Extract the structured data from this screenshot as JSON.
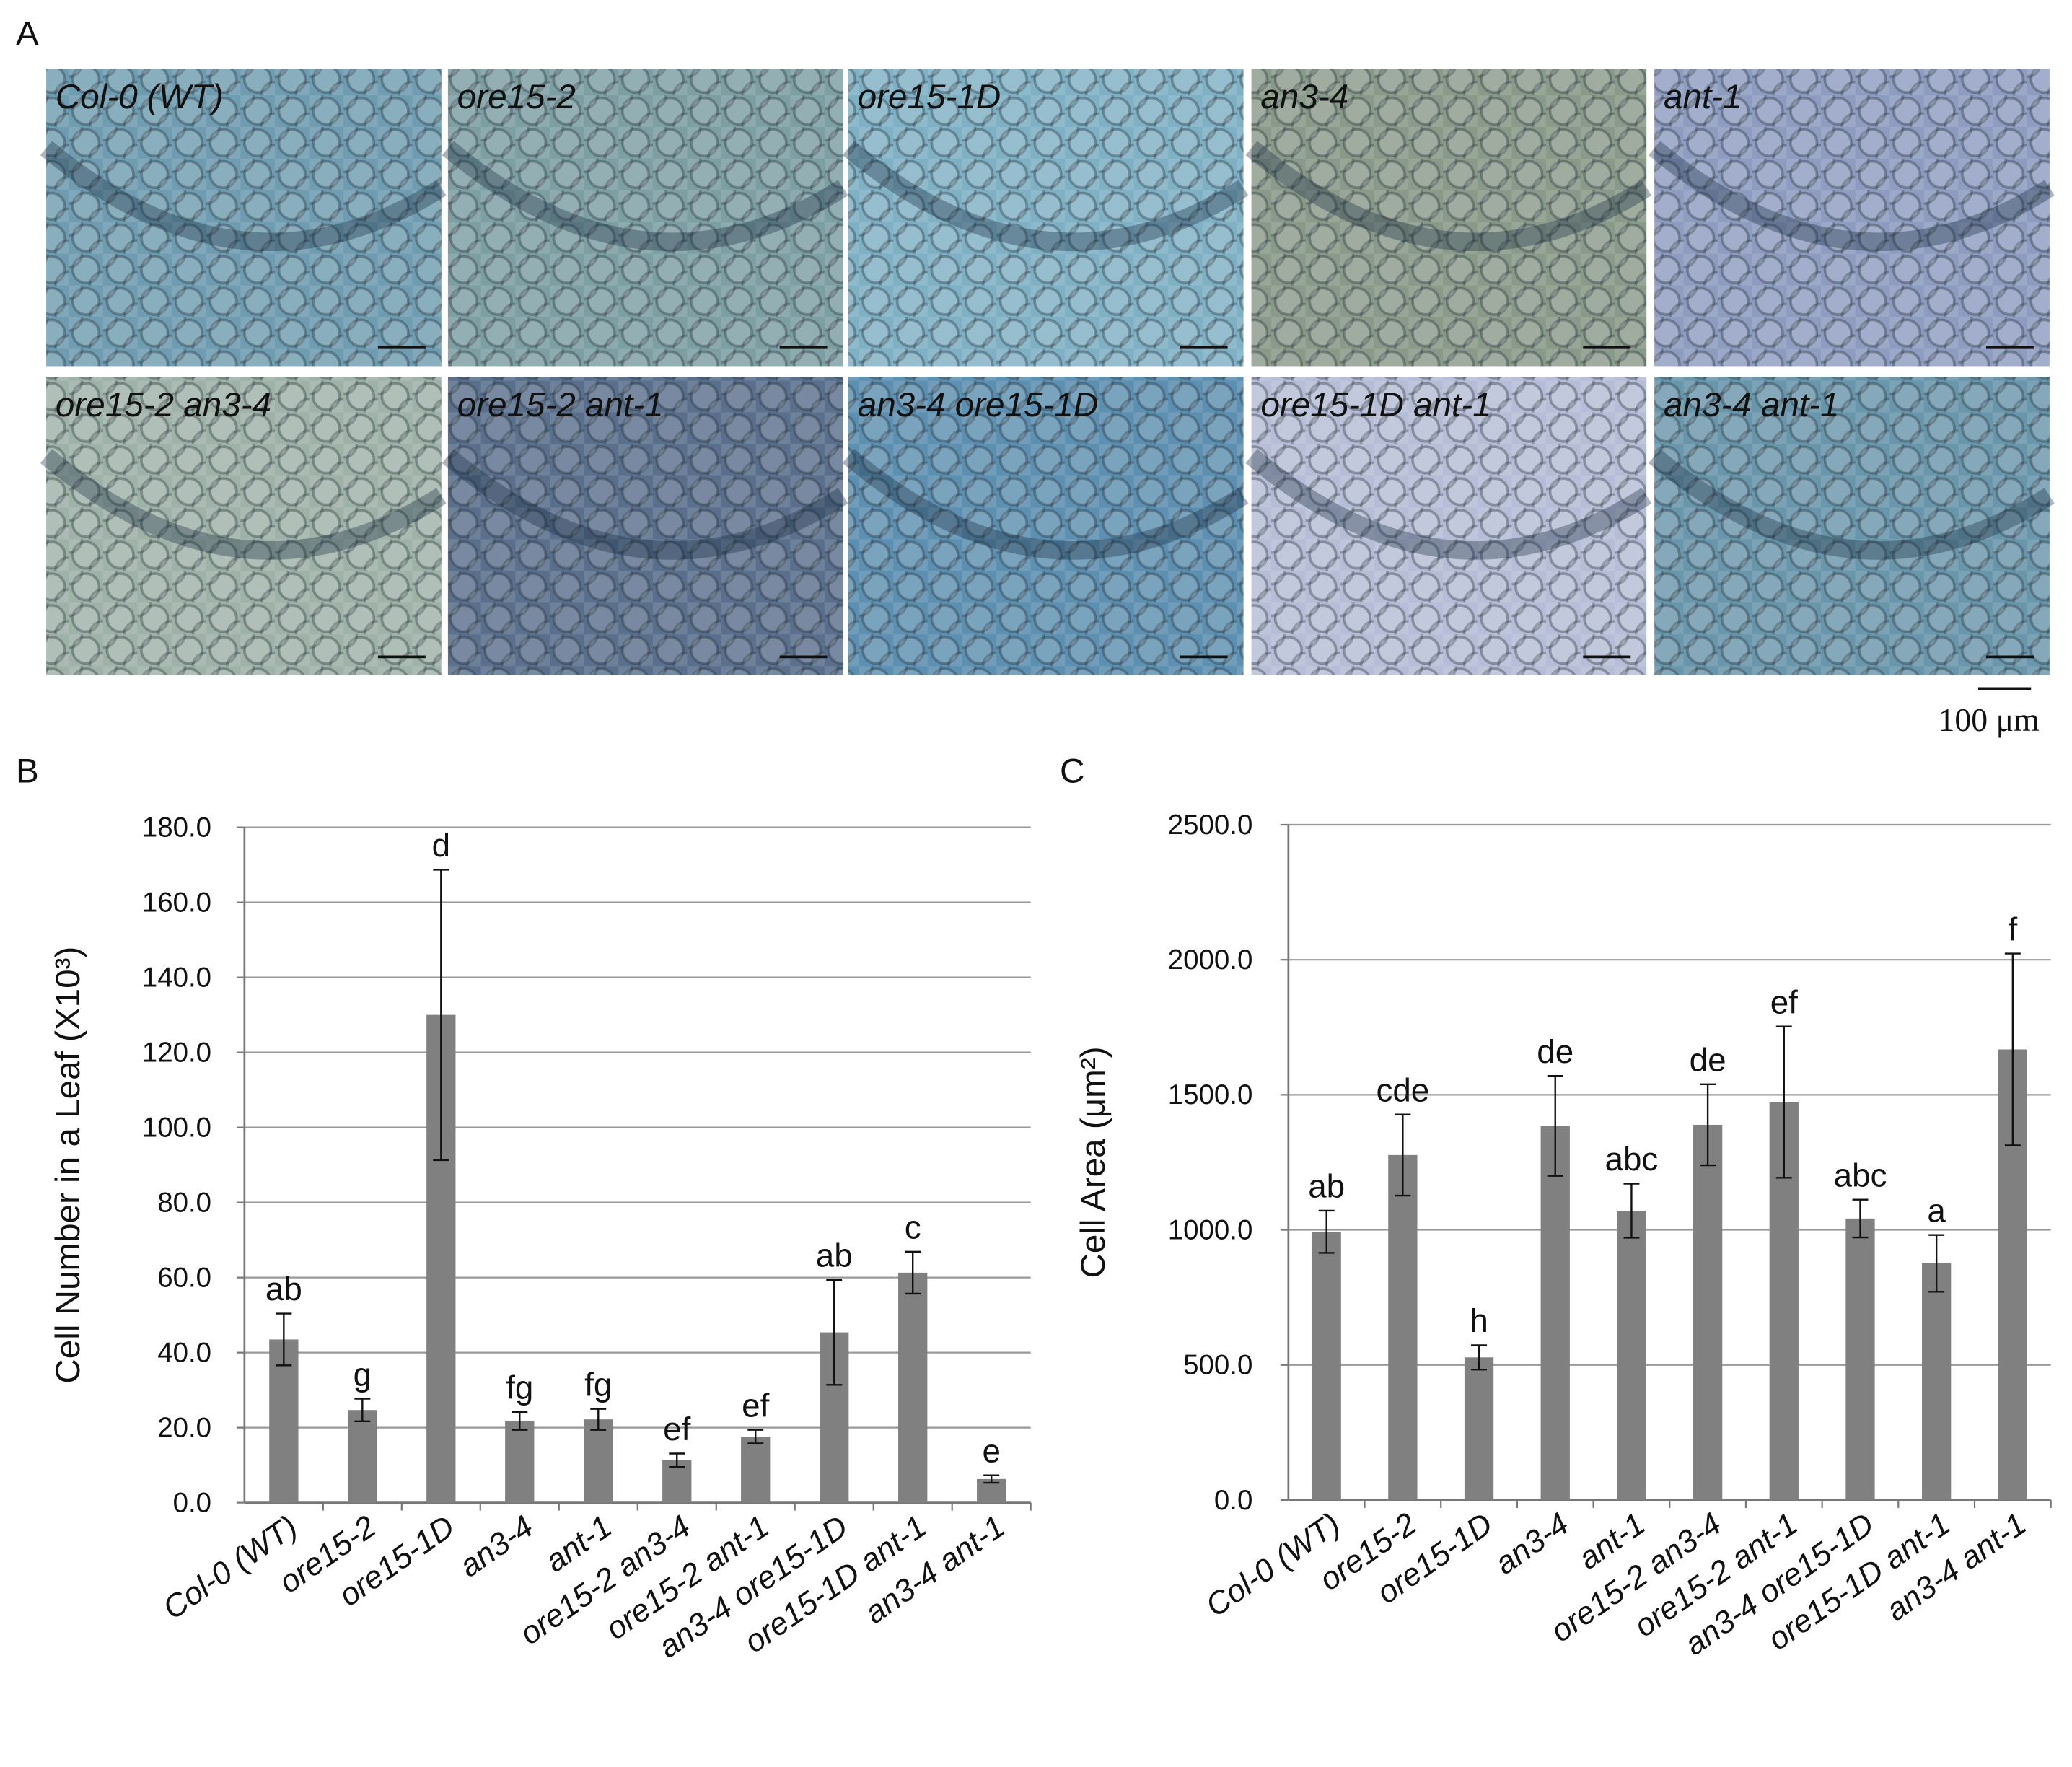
{
  "panel_labels": [
    "A",
    "B",
    "C"
  ],
  "micrographs": {
    "labels": [
      "Col-0 (WT)",
      "ore15-2",
      "ore15-1D",
      "an3-4",
      "ant-1",
      "ore15-2 an3-4",
      "ore15-2 ant-1",
      "an3-4 ore15-1D",
      "ore15-1D ant-1",
      "an3-4 ant-1"
    ],
    "scale_bar": "100 μm"
  },
  "chart_data": [
    {
      "type": "bar",
      "y_label": "Cell Number in  a Leaf  (X10³)",
      "categories": [
        "Col-0 (WT)",
        "ore15-2",
        "ore15-1D",
        "an3-4",
        "ant-1",
        "ore15-2 an3-4",
        "ore15-2 ant-1",
        "an3-4 ore15-1D",
        "ore15-1D ant-1",
        "an3-4 ant-1"
      ],
      "values": [
        43.5,
        24.7,
        130,
        21.8,
        22.2,
        11.3,
        17.6,
        45.4,
        61.3,
        6.3
      ],
      "errors": [
        6.9,
        3,
        38.7,
        2.4,
        2.8,
        1.8,
        1.8,
        14,
        5.6,
        1
      ],
      "annotations": [
        "ab",
        "g",
        "d",
        "fg",
        "fg",
        "ef",
        "ef",
        "ab",
        "c",
        "e"
      ],
      "color": "#808080",
      "grid": true,
      "ylim": [
        0,
        180
      ],
      "yticks": [
        {
          "value": 0,
          "label": "0.0"
        },
        {
          "value": 20,
          "label": "20.0"
        },
        {
          "value": 40,
          "label": "40.0"
        },
        {
          "value": 60,
          "label": "60.0"
        },
        {
          "value": 80,
          "label": "80.0"
        },
        {
          "value": 100,
          "label": "100.0"
        },
        {
          "value": 120,
          "label": "120.0"
        },
        {
          "value": 140,
          "label": "140.0"
        },
        {
          "value": 160,
          "label": "160.0"
        },
        {
          "value": 180,
          "label": "180.0"
        }
      ]
    },
    {
      "type": "bar",
      "y_label": "Cell Area (μm²)",
      "categories": [
        "Col-0 (WT)",
        "ore15-2",
        "ore15-1D",
        "an3-4",
        "ant-1",
        "ore15-2 an3-4",
        "ore15-2 ant-1",
        "an3-4 ore15-1D",
        "ore15-1D ant-1",
        "an3-4 ant-1"
      ],
      "values": [
        993,
        1277,
        528,
        1385,
        1071,
        1389,
        1473,
        1042,
        876,
        1668
      ],
      "errors": [
        78,
        150,
        45,
        185,
        100,
        150,
        280,
        70,
        105,
        355
      ],
      "annotations": [
        "ab",
        "cde",
        "h",
        "de",
        "abc",
        "de",
        "ef",
        "abc",
        "a",
        "f"
      ],
      "color": "#808080",
      "grid": true,
      "ylim": [
        0,
        2500
      ],
      "yticks": [
        {
          "value": 0,
          "label": "0.0"
        },
        {
          "value": 500,
          "label": "500.0"
        },
        {
          "value": 1000,
          "label": "1000.0"
        },
        {
          "value": 1500,
          "label": "1500.0"
        },
        {
          "value": 2000,
          "label": "2000.0"
        },
        {
          "value": 2500,
          "label": "2500.0"
        }
      ]
    }
  ]
}
